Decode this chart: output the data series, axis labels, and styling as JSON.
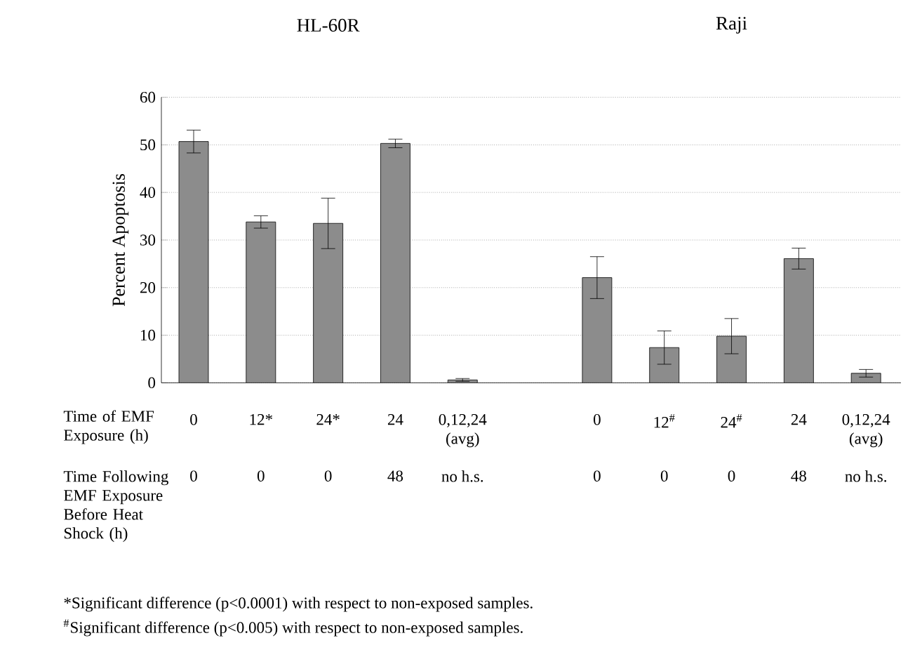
{
  "chart_data": {
    "type": "bar",
    "ylabel": "Percent Apoptosis",
    "categories": [
      "0",
      "12*",
      "24*",
      "24",
      "0,12,24 (avg)",
      null,
      "0",
      "12$^{#}$",
      "24$^{#}$",
      "24",
      "0,12,24 (avg)"
    ],
    "values": [
      50.7,
      33.8,
      33.5,
      50.3,
      0.6,
      null,
      22.1,
      7.4,
      9.8,
      26.1,
      2.0
    ],
    "errors": [
      2.4,
      1.3,
      5.3,
      0.9,
      0.3,
      null,
      4.4,
      3.5,
      3.7,
      2.2,
      0.8
    ],
    "color": "#8c8c8c",
    "ylim": [
      0,
      60
    ],
    "yticks": [
      0,
      10,
      20,
      30,
      40,
      50,
      60
    ],
    "grid": "y",
    "annotations": [
      "HL-60R",
      "Raji",
      "Time of EMF Exposure (h)",
      "Time Following EMF Exposure Before Heat Shock (h)",
      "0",
      "0",
      "0",
      "48",
      "no h.s.",
      "0",
      "0",
      "0",
      "48",
      "no h.s.",
      "*Significant difference (p<0.0001) with respect to non-exposed samples.",
      "$^{#}$Significant difference (p<0.005) with respect to non-exposed samples."
    ]
  }
}
